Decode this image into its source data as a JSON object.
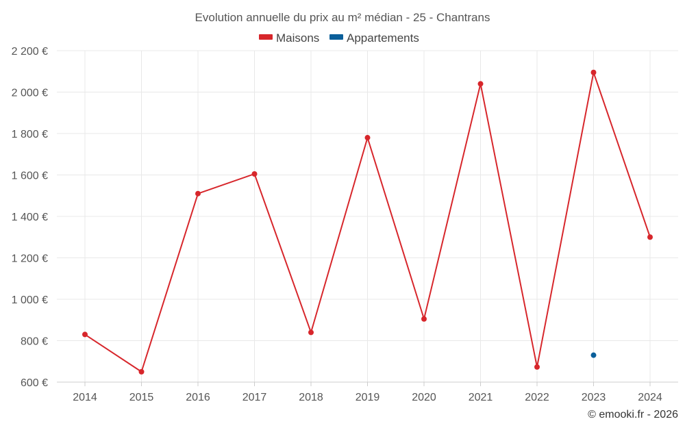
{
  "chart_data": {
    "type": "line",
    "title": "Evolution annuelle du prix au m² médian - 25 - Chantrans",
    "categories": [
      "2014",
      "2015",
      "2016",
      "2017",
      "2018",
      "2019",
      "2020",
      "2021",
      "2022",
      "2023",
      "2024"
    ],
    "series": [
      {
        "name": "Maisons",
        "color": "#d7262b",
        "values": [
          830,
          650,
          1510,
          1605,
          840,
          1780,
          905,
          2040,
          673,
          2095,
          1300
        ]
      },
      {
        "name": "Appartements",
        "color": "#0a5f9a",
        "values": [
          null,
          null,
          null,
          null,
          null,
          null,
          null,
          null,
          null,
          730,
          null
        ]
      }
    ],
    "ylim": [
      600,
      2200
    ],
    "yticks": [
      600,
      800,
      1000,
      1200,
      1400,
      1600,
      1800,
      2000,
      2200
    ],
    "ytick_labels": [
      "600 €",
      "800 €",
      "1 000 €",
      "1 200 €",
      "1 400 €",
      "1 600 €",
      "1 800 €",
      "2 000 €",
      "2 200 €"
    ],
    "legend_position": "top-center",
    "grid": true
  },
  "credit": "© emooki.fr - 2026"
}
